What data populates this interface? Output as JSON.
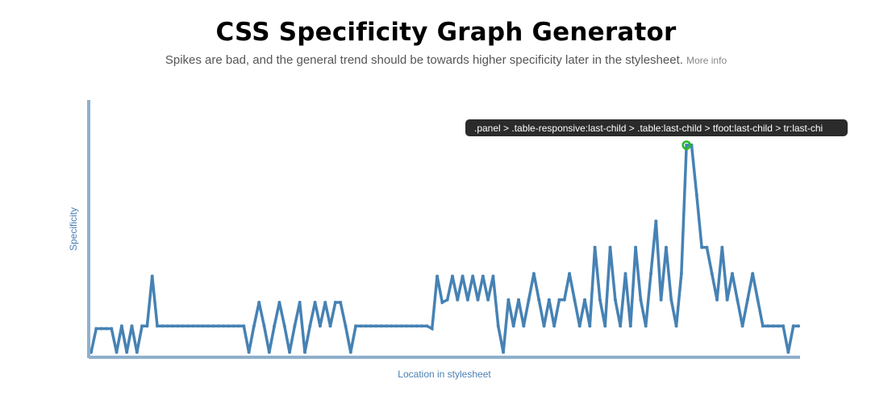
{
  "header": {
    "title": "CSS Specificity Graph Generator",
    "subtitle": "Spikes are bad, and the general trend should be towards higher specificity later in the stylesheet.",
    "more_info_label": "More info"
  },
  "tooltip": {
    "text": ".panel > .table-responsive:last-child > .table:last-child > tfoot:last-child > tr:last-chi"
  },
  "colors": {
    "line": "#4682b4",
    "axis": "#8fb0cc",
    "highlight": "#22bb22",
    "tooltip_bg": "#2b2b2b"
  },
  "chart_data": {
    "type": "line",
    "xlabel": "Location in stylesheet",
    "ylabel": "Specificity",
    "grid": false,
    "highlight_index": 117,
    "series": [
      {
        "values": [
          1,
          10,
          10,
          10,
          10,
          1,
          11,
          1,
          11,
          1,
          11,
          11,
          30,
          11,
          11,
          11,
          11,
          11,
          11,
          11,
          11,
          11,
          11,
          11,
          11,
          11,
          11,
          11,
          11,
          11,
          11,
          1,
          11,
          20,
          11,
          1,
          11,
          20,
          11,
          1,
          11,
          20,
          1,
          11,
          20,
          11,
          20,
          11,
          20,
          20,
          11,
          1,
          11,
          11,
          11,
          11,
          11,
          11,
          11,
          11,
          11,
          11,
          11,
          11,
          11,
          11,
          11,
          10,
          30,
          20,
          21,
          30,
          21,
          30,
          21,
          30,
          21,
          30,
          21,
          30,
          11,
          1,
          21,
          11,
          21,
          11,
          21,
          31,
          21,
          11,
          21,
          11,
          21,
          21,
          31,
          21,
          11,
          21,
          11,
          41,
          21,
          11,
          41,
          21,
          11,
          31,
          11,
          41,
          21,
          11,
          31,
          51,
          21,
          41,
          21,
          11,
          31,
          80,
          80,
          61,
          41,
          41,
          31,
          21,
          41,
          21,
          31,
          21,
          11,
          21,
          31,
          21,
          11,
          11,
          11,
          11,
          11,
          1,
          11,
          11
        ]
      }
    ]
  }
}
